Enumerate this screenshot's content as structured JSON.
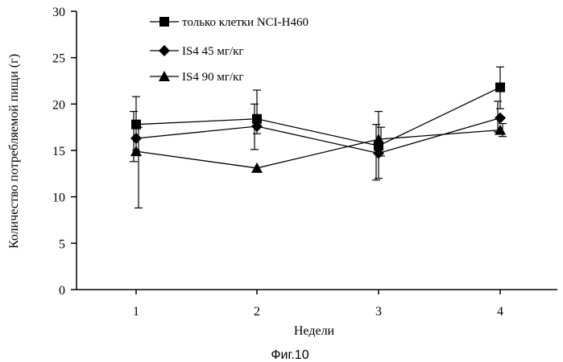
{
  "chart_data": {
    "type": "line",
    "title": "",
    "caption": "Фиг.10",
    "xlabel": "Недели",
    "ylabel": "Количество потребляемой пищи (г)",
    "categories": [
      "1",
      "2",
      "3",
      "4"
    ],
    "yticks": [
      "0",
      "5",
      "10",
      "15",
      "20",
      "25",
      "30"
    ],
    "ylim": [
      0,
      30
    ],
    "grid": false,
    "legend_position": "top-left",
    "series": [
      {
        "name": "только клетки NCI-H460",
        "marker": "square",
        "values": [
          17.8,
          18.4,
          15.5,
          21.8
        ],
        "err_high": [
          20.8,
          21.5,
          19.2,
          24.0
        ],
        "err_low": [
          15.0,
          16.8,
          12.0,
          19.5
        ]
      },
      {
        "name": "IS4 45 мг/кг",
        "marker": "diamond",
        "values": [
          16.3,
          17.6,
          14.7,
          18.5
        ],
        "err_high": [
          19.2,
          20.0,
          17.8,
          20.3
        ],
        "err_low": [
          13.8,
          15.1,
          11.8,
          17.0
        ]
      },
      {
        "name": "IS4 90 мг/кг",
        "marker": "triangle",
        "values": [
          14.9,
          13.1,
          16.2,
          17.2
        ],
        "err_high": [
          17.5,
          13.1,
          17.5,
          17.9
        ],
        "err_low": [
          8.8,
          13.1,
          14.4,
          16.5
        ]
      }
    ],
    "color": "#000000"
  }
}
